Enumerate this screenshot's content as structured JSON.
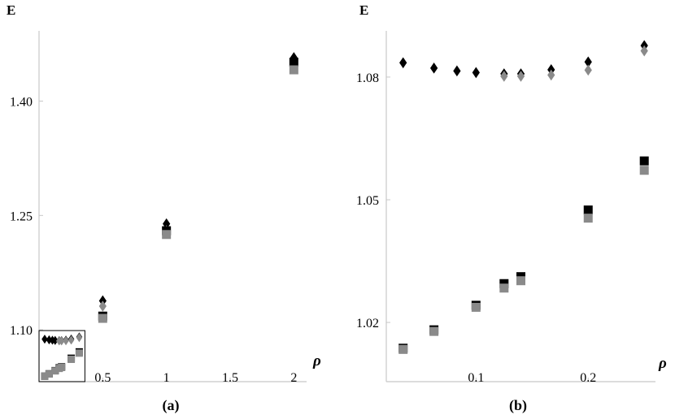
{
  "chart_data": [
    {
      "type": "scatter",
      "caption": "(a)",
      "ylabel": "E",
      "xlabel": "ρ",
      "xlim": [
        0,
        2.1
      ],
      "ylim": [
        1.032,
        1.49
      ],
      "xticks": [
        {
          "v": 0.5,
          "label": "0.5"
        },
        {
          "v": 1,
          "label": "1"
        },
        {
          "v": 1.5,
          "label": "1.5"
        },
        {
          "v": 2,
          "label": "2"
        }
      ],
      "yticks": [
        {
          "v": 1.1,
          "label": "1.10"
        },
        {
          "v": 1.25,
          "label": "1.25"
        },
        {
          "v": 1.4,
          "label": "1.40"
        }
      ],
      "inset_box": {
        "x": [
          0,
          0.36
        ],
        "y": [
          1.032,
          1.099
        ]
      },
      "series": [
        {
          "marker": "diamond",
          "color": "#000000",
          "x": [
            0.5,
            1,
            2
          ],
          "y": [
            1.138,
            1.239,
            1.457
          ]
        },
        {
          "marker": "diamond",
          "color": "#8a8a8a",
          "x": [
            0.5,
            1,
            2
          ],
          "y": [
            1.131,
            1.23,
            1.448
          ]
        },
        {
          "marker": "square",
          "color": "#000000",
          "x": [
            0.5,
            1,
            2
          ],
          "y": [
            1.118,
            1.23,
            1.451
          ]
        },
        {
          "marker": "square",
          "color": "#8a8a8a",
          "x": [
            0.5,
            1,
            2
          ],
          "y": [
            1.115,
            1.225,
            1.441
          ]
        }
      ],
      "inset_series": [
        {
          "marker": "diamond",
          "color": "#000000",
          "x": [
            0.035,
            0.0625,
            0.083,
            0.1,
            0.125,
            0.14,
            0.167,
            0.2,
            0.25
          ],
          "y": [
            1.0835,
            1.0822,
            1.0815,
            1.0811,
            1.0808,
            1.0808,
            1.0818,
            1.0837,
            1.0877
          ]
        },
        {
          "marker": "diamond",
          "color": "#8a8a8a",
          "x": [
            0.125,
            0.14,
            0.167,
            0.2,
            0.25
          ],
          "y": [
            1.0802,
            1.0802,
            1.0805,
            1.0817,
            1.0864
          ]
        },
        {
          "marker": "square",
          "color": "#000000",
          "x": [
            0.035,
            0.0625,
            0.1,
            0.125,
            0.14,
            0.2,
            0.25
          ],
          "y": [
            1.0137,
            1.0182,
            1.0242,
            1.0295,
            1.0312,
            1.0475,
            1.0595
          ]
        },
        {
          "marker": "square",
          "color": "#8a8a8a",
          "x": [
            0.035,
            0.0625,
            0.1,
            0.125,
            0.14,
            0.2,
            0.25
          ],
          "y": [
            1.0134,
            1.0178,
            1.0237,
            1.0284,
            1.0302,
            1.0455,
            1.0572
          ]
        }
      ]
    },
    {
      "type": "scatter",
      "caption": "(b)",
      "ylabel": "E",
      "xlabel": "ρ",
      "xlim": [
        0.02,
        0.26
      ],
      "ylim": [
        1.0085,
        1.0915
      ],
      "xticks": [
        {
          "v": 0.1,
          "label": "0.1"
        },
        {
          "v": 0.2,
          "label": "0.2"
        }
      ],
      "yticks": [
        {
          "v": 1.02,
          "label": "1.02"
        },
        {
          "v": 1.05,
          "label": "1.05"
        },
        {
          "v": 1.08,
          "label": "1.08"
        }
      ],
      "series": [
        {
          "marker": "diamond",
          "color": "#000000",
          "x": [
            0.035,
            0.0625,
            0.083,
            0.1,
            0.125,
            0.14,
            0.167,
            0.2,
            0.25
          ],
          "y": [
            1.0835,
            1.0822,
            1.0815,
            1.0811,
            1.0808,
            1.0808,
            1.0818,
            1.0837,
            1.0877
          ]
        },
        {
          "marker": "diamond",
          "color": "#8a8a8a",
          "x": [
            0.125,
            0.14,
            0.167,
            0.2,
            0.25
          ],
          "y": [
            1.0802,
            1.0802,
            1.0805,
            1.0817,
            1.0864
          ]
        },
        {
          "marker": "square",
          "color": "#000000",
          "x": [
            0.035,
            0.0625,
            0.1,
            0.125,
            0.14,
            0.2,
            0.25
          ],
          "y": [
            1.0137,
            1.0182,
            1.0242,
            1.0295,
            1.0312,
            1.0475,
            1.0595
          ]
        },
        {
          "marker": "square",
          "color": "#8a8a8a",
          "x": [
            0.035,
            0.0625,
            0.1,
            0.125,
            0.14,
            0.2,
            0.25
          ],
          "y": [
            1.0134,
            1.0178,
            1.0237,
            1.0284,
            1.0302,
            1.0455,
            1.0572
          ]
        }
      ]
    }
  ]
}
